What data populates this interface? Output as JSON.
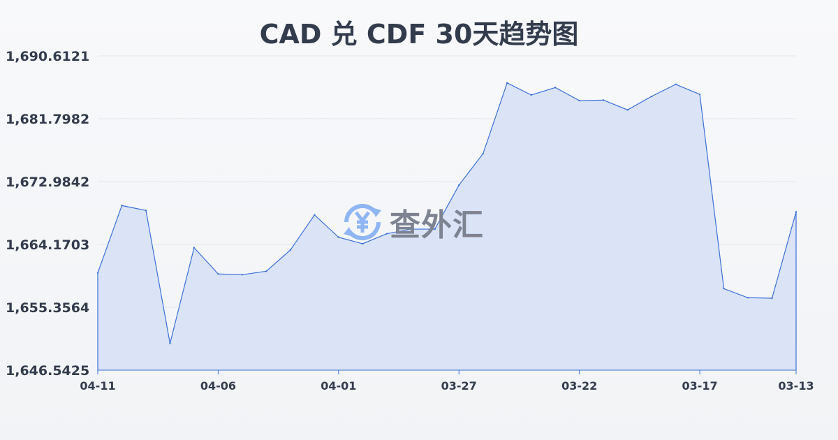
{
  "chart_data": {
    "type": "area",
    "title": "CAD 兑 CDF 30天趋势图",
    "xlabel": "",
    "ylabel": "",
    "x": [
      "04-11",
      "04-10",
      "04-09",
      "04-08",
      "04-07",
      "04-06",
      "04-05",
      "04-04",
      "04-03",
      "04-02",
      "04-01",
      "03-31",
      "03-30",
      "03-29",
      "03-28",
      "03-27",
      "03-26",
      "03-25",
      "03-24",
      "03-23",
      "03-22",
      "03-21",
      "03-20",
      "03-19",
      "03-18",
      "03-17",
      "03-16",
      "03-15",
      "03-14",
      "03-13"
    ],
    "values": [
      1660.18,
      1669.62,
      1668.94,
      1650.29,
      1663.71,
      1660.03,
      1659.93,
      1660.42,
      1663.39,
      1668.31,
      1665.18,
      1664.27,
      1665.67,
      1666.32,
      1666.32,
      1672.49,
      1676.9,
      1686.82,
      1685.13,
      1686.17,
      1684.34,
      1684.41,
      1683.04,
      1684.93,
      1686.62,
      1685.22,
      1657.97,
      1656.7,
      1656.63,
      1668.74
    ],
    "ylim": [
      1646.5425,
      1690.6121
    ],
    "yticks": [
      "1,690.6121",
      "1,681.7982",
      "1,672.9842",
      "1,664.1703",
      "1,655.3564",
      "1,646.5425"
    ],
    "xticks": [
      "04-11",
      "04-06",
      "04-01",
      "03-27",
      "03-22",
      "03-17",
      "03-13"
    ],
    "grid": true,
    "line_color": "#3a6fd8",
    "fill_color": "#d6e1f6"
  },
  "watermark": {
    "text": "查外汇",
    "icon": "yen-exchange-icon",
    "color": "#8fb6f3"
  }
}
